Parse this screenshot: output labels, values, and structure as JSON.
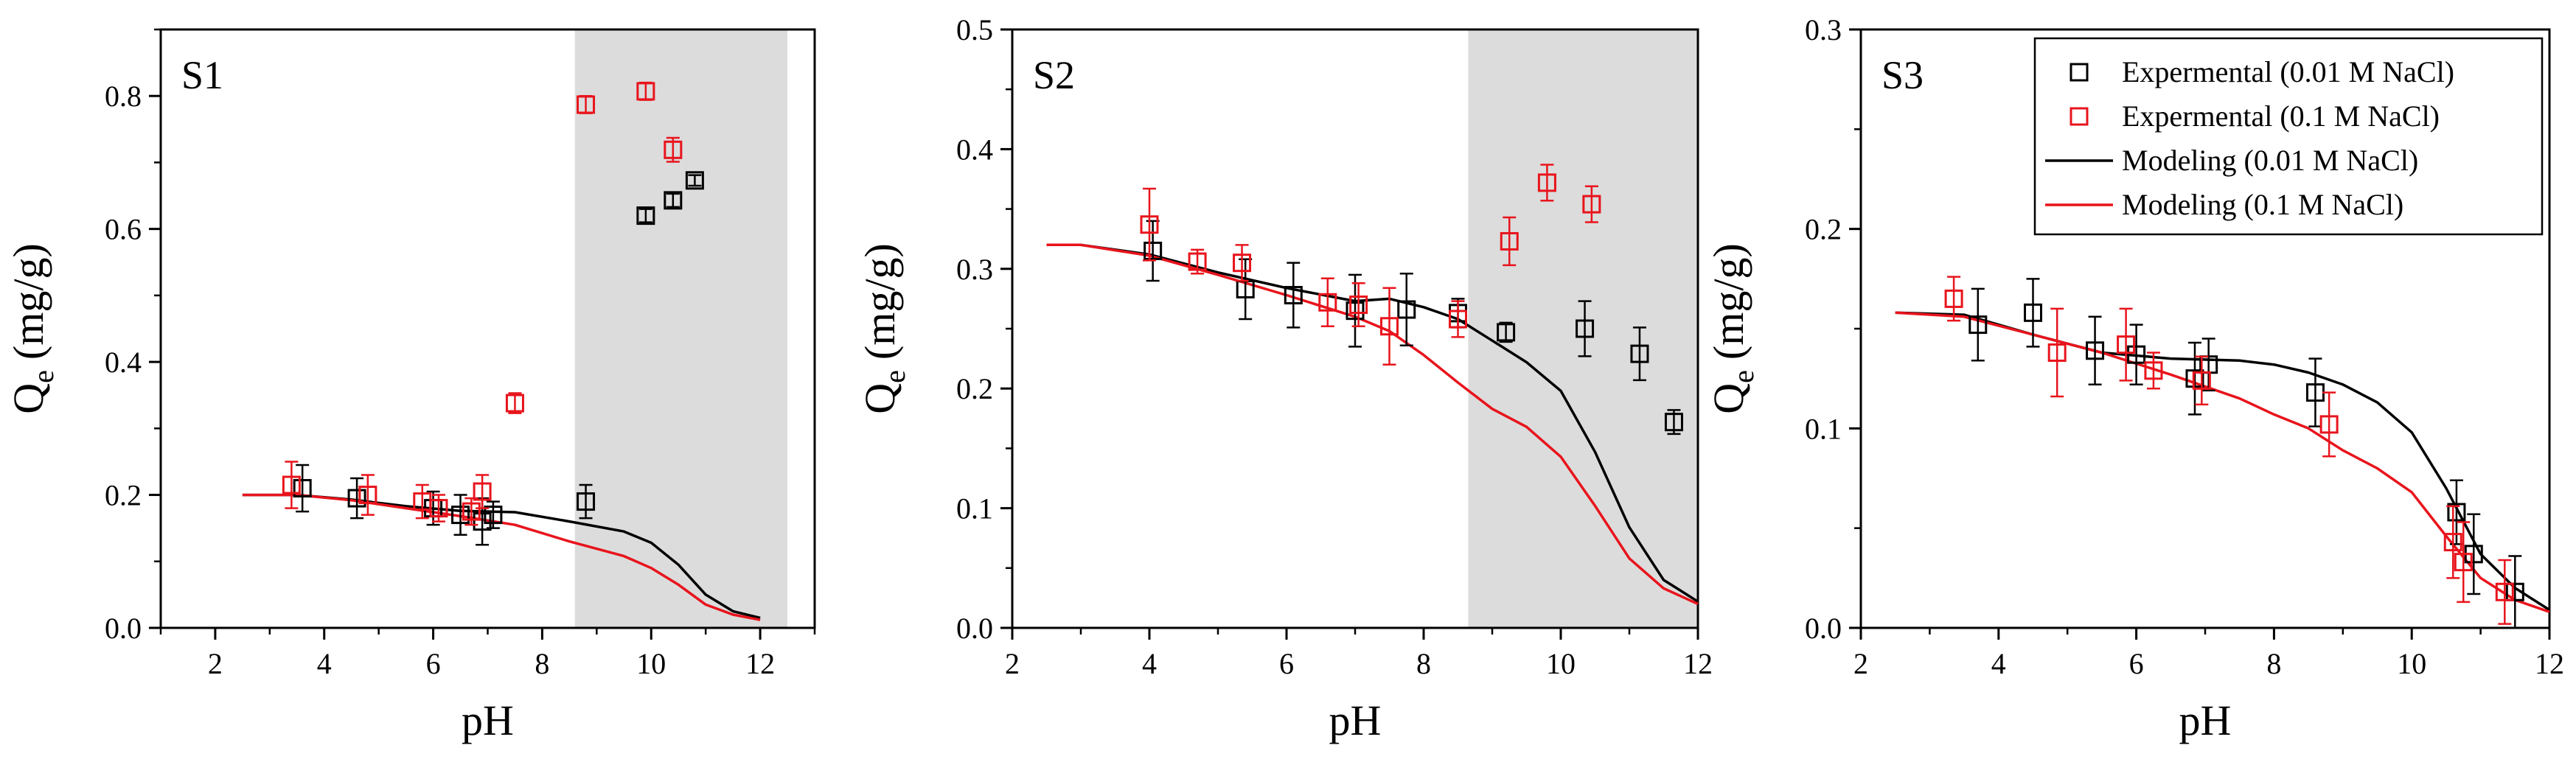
{
  "figure": {
    "colors": {
      "black": "#000000",
      "red": "#e8141c",
      "shade": "#dcdcdc"
    }
  },
  "chart_data": [
    {
      "type": "scatter",
      "panel_label": "S1",
      "xlabel": "pH",
      "ylabel_main": "Q",
      "ylabel_sub": "e",
      "ylabel_unit": "(mg/g)",
      "xlim": [
        1,
        13
      ],
      "ylim": [
        0,
        0.9
      ],
      "xticks": [
        2,
        4,
        6,
        8,
        10,
        12
      ],
      "xtick_labels": [
        "2",
        "4",
        "6",
        "8",
        "10",
        "12"
      ],
      "yticks": [
        0,
        0.2,
        0.4,
        0.6,
        0.8
      ],
      "ytick_labels": [
        "0.0",
        "0.2",
        "0.4",
        "0.6",
        "0.8"
      ],
      "shaded_x_range": [
        8.6,
        12.5
      ],
      "series": [
        {
          "name": "Expermental (0.01 M NaCl)",
          "kind": "markers",
          "color": "#000000",
          "points": [
            {
              "x": 3.6,
              "y": 0.21,
              "err": 0.035
            },
            {
              "x": 4.6,
              "y": 0.195,
              "err": 0.03
            },
            {
              "x": 6.0,
              "y": 0.18,
              "err": 0.025
            },
            {
              "x": 6.5,
              "y": 0.17,
              "err": 0.03
            },
            {
              "x": 6.9,
              "y": 0.16,
              "err": 0.035
            },
            {
              "x": 7.1,
              "y": 0.17,
              "err": 0.02
            },
            {
              "x": 8.8,
              "y": 0.19,
              "err": 0.025
            },
            {
              "x": 9.9,
              "y": 0.62,
              "err": 0.01
            },
            {
              "x": 10.4,
              "y": 0.643,
              "err": 0.01
            },
            {
              "x": 10.8,
              "y": 0.673,
              "err": 0.008
            }
          ]
        },
        {
          "name": "Expermental (0.1 M NaCl)",
          "kind": "markers",
          "color": "#e8141c",
          "points": [
            {
              "x": 3.4,
              "y": 0.215,
              "err": 0.035
            },
            {
              "x": 4.8,
              "y": 0.2,
              "err": 0.03
            },
            {
              "x": 5.8,
              "y": 0.19,
              "err": 0.025
            },
            {
              "x": 6.1,
              "y": 0.18,
              "err": 0.02
            },
            {
              "x": 6.7,
              "y": 0.175,
              "err": 0.02
            },
            {
              "x": 6.9,
              "y": 0.205,
              "err": 0.025
            },
            {
              "x": 7.5,
              "y": 0.338,
              "err": 0.015
            },
            {
              "x": 8.8,
              "y": 0.787,
              "err": 0.013
            },
            {
              "x": 9.9,
              "y": 0.807,
              "err": 0.013
            },
            {
              "x": 10.4,
              "y": 0.719,
              "err": 0.018
            }
          ]
        },
        {
          "name": "Modeling (0.01 M NaCl)",
          "kind": "line",
          "color": "#000000",
          "points": [
            {
              "x": 2.5,
              "y": 0.2
            },
            {
              "x": 3.5,
              "y": 0.2
            },
            {
              "x": 4.5,
              "y": 0.193
            },
            {
              "x": 5.5,
              "y": 0.183
            },
            {
              "x": 6.5,
              "y": 0.176
            },
            {
              "x": 7.5,
              "y": 0.174
            },
            {
              "x": 8.5,
              "y": 0.16
            },
            {
              "x": 9.5,
              "y": 0.145
            },
            {
              "x": 10.0,
              "y": 0.128
            },
            {
              "x": 10.5,
              "y": 0.095
            },
            {
              "x": 11.0,
              "y": 0.05
            },
            {
              "x": 11.5,
              "y": 0.025
            },
            {
              "x": 12.0,
              "y": 0.015
            }
          ]
        },
        {
          "name": "Modeling (0.1 M NaCl)",
          "kind": "line",
          "color": "#e8141c",
          "points": [
            {
              "x": 2.5,
              "y": 0.2
            },
            {
              "x": 3.5,
              "y": 0.2
            },
            {
              "x": 4.5,
              "y": 0.192
            },
            {
              "x": 5.5,
              "y": 0.18
            },
            {
              "x": 6.5,
              "y": 0.168
            },
            {
              "x": 7.5,
              "y": 0.155
            },
            {
              "x": 8.5,
              "y": 0.13
            },
            {
              "x": 9.5,
              "y": 0.108
            },
            {
              "x": 10.0,
              "y": 0.09
            },
            {
              "x": 10.5,
              "y": 0.065
            },
            {
              "x": 11.0,
              "y": 0.035
            },
            {
              "x": 11.5,
              "y": 0.02
            },
            {
              "x": 12.0,
              "y": 0.012
            }
          ]
        }
      ]
    },
    {
      "type": "scatter",
      "panel_label": "S2",
      "xlabel": "pH",
      "ylabel_main": "Q",
      "ylabel_sub": "e",
      "ylabel_unit": "(mg/g)",
      "xlim": [
        2,
        12
      ],
      "ylim": [
        0,
        0.5
      ],
      "xticks": [
        2,
        4,
        6,
        8,
        10,
        12
      ],
      "xtick_labels": [
        "2",
        "4",
        "6",
        "8",
        "10",
        "12"
      ],
      "yticks": [
        0,
        0.1,
        0.2,
        0.3,
        0.4,
        0.5
      ],
      "ytick_labels": [
        "0.0",
        "0.1",
        "0.2",
        "0.3",
        "0.4",
        "0.5"
      ],
      "shaded_x_range": [
        8.65,
        12
      ],
      "series": [
        {
          "name": "Expermental (0.01 M NaCl)",
          "kind": "markers",
          "color": "#000000",
          "points": [
            {
              "x": 4.05,
              "y": 0.315,
              "err": 0.025
            },
            {
              "x": 5.4,
              "y": 0.283,
              "err": 0.025
            },
            {
              "x": 6.1,
              "y": 0.278,
              "err": 0.027
            },
            {
              "x": 7.0,
              "y": 0.265,
              "err": 0.03
            },
            {
              "x": 7.75,
              "y": 0.266,
              "err": 0.03
            },
            {
              "x": 8.5,
              "y": 0.263,
              "err": 0.012
            },
            {
              "x": 9.2,
              "y": 0.247,
              "err": 0.008
            },
            {
              "x": 10.35,
              "y": 0.25,
              "err": 0.023
            },
            {
              "x": 11.15,
              "y": 0.229,
              "err": 0.022
            },
            {
              "x": 11.65,
              "y": 0.172,
              "err": 0.01
            }
          ]
        },
        {
          "name": "Expermental (0.1 M NaCl)",
          "kind": "markers",
          "color": "#e8141c",
          "points": [
            {
              "x": 4.0,
              "y": 0.337,
              "err": 0.03
            },
            {
              "x": 4.7,
              "y": 0.306,
              "err": 0.01
            },
            {
              "x": 5.35,
              "y": 0.305,
              "err": 0.015
            },
            {
              "x": 6.6,
              "y": 0.272,
              "err": 0.02
            },
            {
              "x": 7.05,
              "y": 0.27,
              "err": 0.018
            },
            {
              "x": 7.5,
              "y": 0.252,
              "err": 0.032
            },
            {
              "x": 8.5,
              "y": 0.258,
              "err": 0.015
            },
            {
              "x": 9.25,
              "y": 0.323,
              "err": 0.02
            },
            {
              "x": 9.8,
              "y": 0.372,
              "err": 0.015
            },
            {
              "x": 10.45,
              "y": 0.354,
              "err": 0.015
            }
          ]
        },
        {
          "name": "Modeling (0.01 M NaCl)",
          "kind": "line",
          "color": "#000000",
          "points": [
            {
              "x": 2.5,
              "y": 0.32
            },
            {
              "x": 3.0,
              "y": 0.32
            },
            {
              "x": 4.0,
              "y": 0.312
            },
            {
              "x": 5.0,
              "y": 0.297
            },
            {
              "x": 6.0,
              "y": 0.284
            },
            {
              "x": 7.0,
              "y": 0.273
            },
            {
              "x": 7.5,
              "y": 0.275
            },
            {
              "x": 8.0,
              "y": 0.268
            },
            {
              "x": 8.5,
              "y": 0.258
            },
            {
              "x": 9.0,
              "y": 0.24
            },
            {
              "x": 9.5,
              "y": 0.222
            },
            {
              "x": 10.0,
              "y": 0.198
            },
            {
              "x": 10.5,
              "y": 0.147
            },
            {
              "x": 11.0,
              "y": 0.084
            },
            {
              "x": 11.5,
              "y": 0.04
            },
            {
              "x": 12.0,
              "y": 0.022
            }
          ]
        },
        {
          "name": "Modeling (0.1 M NaCl)",
          "kind": "line",
          "color": "#e8141c",
          "points": [
            {
              "x": 2.5,
              "y": 0.32
            },
            {
              "x": 3.0,
              "y": 0.32
            },
            {
              "x": 4.0,
              "y": 0.311
            },
            {
              "x": 5.0,
              "y": 0.295
            },
            {
              "x": 6.0,
              "y": 0.278
            },
            {
              "x": 7.0,
              "y": 0.26
            },
            {
              "x": 7.5,
              "y": 0.248
            },
            {
              "x": 8.0,
              "y": 0.228
            },
            {
              "x": 8.5,
              "y": 0.205
            },
            {
              "x": 9.0,
              "y": 0.183
            },
            {
              "x": 9.5,
              "y": 0.168
            },
            {
              "x": 10.0,
              "y": 0.143
            },
            {
              "x": 10.5,
              "y": 0.102
            },
            {
              "x": 11.0,
              "y": 0.058
            },
            {
              "x": 11.5,
              "y": 0.033
            },
            {
              "x": 12.0,
              "y": 0.02
            }
          ]
        }
      ]
    },
    {
      "type": "scatter",
      "panel_label": "S3",
      "xlabel": "pH",
      "ylabel_main": "Q",
      "ylabel_sub": "e",
      "ylabel_unit": "(mg/g)",
      "xlim": [
        2,
        12
      ],
      "ylim": [
        0,
        0.3
      ],
      "xticks": [
        2,
        4,
        6,
        8,
        10,
        12
      ],
      "xtick_labels": [
        "2",
        "4",
        "6",
        "8",
        "10",
        "12"
      ],
      "yticks": [
        0,
        0.1,
        0.2,
        0.3
      ],
      "ytick_labels": [
        "0.0",
        "0.1",
        "0.2",
        "0.3"
      ],
      "legend": {
        "position": "top-right",
        "entries": [
          "Expermental (0.01 M NaCl)",
          "Expermental (0.1 M NaCl)",
          "Modeling (0.01 M NaCl)",
          "Modeling (0.1 M NaCl)"
        ]
      },
      "series": [
        {
          "name": "Expermental (0.01 M NaCl)",
          "kind": "markers",
          "color": "#000000",
          "points": [
            {
              "x": 3.7,
              "y": 0.152,
              "err": 0.018
            },
            {
              "x": 4.5,
              "y": 0.158,
              "err": 0.017
            },
            {
              "x": 5.4,
              "y": 0.139,
              "err": 0.017
            },
            {
              "x": 6.0,
              "y": 0.137,
              "err": 0.015
            },
            {
              "x": 6.85,
              "y": 0.125,
              "err": 0.018
            },
            {
              "x": 7.05,
              "y": 0.132,
              "err": 0.013
            },
            {
              "x": 8.6,
              "y": 0.118,
              "err": 0.017
            },
            {
              "x": 10.65,
              "y": 0.058,
              "err": 0.016
            },
            {
              "x": 10.9,
              "y": 0.037,
              "err": 0.02
            },
            {
              "x": 11.5,
              "y": 0.018,
              "err": 0.018
            }
          ]
        },
        {
          "name": "Expermental (0.1 M NaCl)",
          "kind": "markers",
          "color": "#e8141c",
          "points": [
            {
              "x": 3.35,
              "y": 0.165,
              "err": 0.011
            },
            {
              "x": 4.85,
              "y": 0.138,
              "err": 0.022
            },
            {
              "x": 5.85,
              "y": 0.142,
              "err": 0.018
            },
            {
              "x": 6.25,
              "y": 0.129,
              "err": 0.009
            },
            {
              "x": 6.95,
              "y": 0.124,
              "err": 0.012
            },
            {
              "x": 8.8,
              "y": 0.102,
              "err": 0.016
            },
            {
              "x": 10.6,
              "y": 0.043,
              "err": 0.018
            },
            {
              "x": 10.75,
              "y": 0.033,
              "err": 0.02
            },
            {
              "x": 11.35,
              "y": 0.018,
              "err": 0.016
            }
          ]
        },
        {
          "name": "Modeling (0.01 M NaCl)",
          "kind": "line",
          "color": "#000000",
          "points": [
            {
              "x": 2.5,
              "y": 0.158
            },
            {
              "x": 3.5,
              "y": 0.157
            },
            {
              "x": 4.5,
              "y": 0.147
            },
            {
              "x": 5.5,
              "y": 0.138
            },
            {
              "x": 6.5,
              "y": 0.135
            },
            {
              "x": 7.5,
              "y": 0.134
            },
            {
              "x": 8.0,
              "y": 0.132
            },
            {
              "x": 8.5,
              "y": 0.128
            },
            {
              "x": 9.0,
              "y": 0.122
            },
            {
              "x": 9.5,
              "y": 0.113
            },
            {
              "x": 10.0,
              "y": 0.098
            },
            {
              "x": 10.5,
              "y": 0.07
            },
            {
              "x": 11.0,
              "y": 0.037
            },
            {
              "x": 11.5,
              "y": 0.02
            },
            {
              "x": 12.0,
              "y": 0.009
            }
          ]
        },
        {
          "name": "Modeling (0.1 M NaCl)",
          "kind": "line",
          "color": "#e8141c",
          "points": [
            {
              "x": 2.5,
              "y": 0.158
            },
            {
              "x": 3.5,
              "y": 0.156
            },
            {
              "x": 4.5,
              "y": 0.147
            },
            {
              "x": 5.5,
              "y": 0.138
            },
            {
              "x": 6.5,
              "y": 0.127
            },
            {
              "x": 7.5,
              "y": 0.115
            },
            {
              "x": 8.0,
              "y": 0.107
            },
            {
              "x": 8.5,
              "y": 0.1
            },
            {
              "x": 9.0,
              "y": 0.089
            },
            {
              "x": 9.5,
              "y": 0.08
            },
            {
              "x": 10.0,
              "y": 0.068
            },
            {
              "x": 10.5,
              "y": 0.046
            },
            {
              "x": 11.0,
              "y": 0.025
            },
            {
              "x": 11.5,
              "y": 0.014
            },
            {
              "x": 12.0,
              "y": 0.008
            }
          ]
        }
      ]
    }
  ]
}
